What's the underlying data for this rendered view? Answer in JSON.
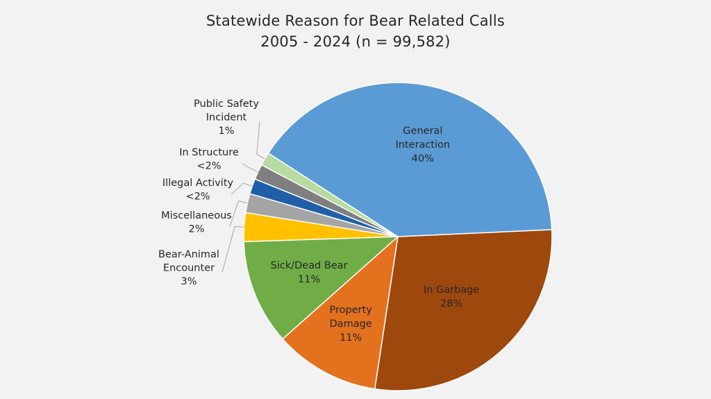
{
  "chart_data": {
    "type": "pie",
    "title": "Statewide Reason for Bear Related Calls",
    "subtitle": "2005 - 2024 (n = 99,582)",
    "slices": [
      {
        "label": "General Interaction",
        "value": 40,
        "value_label": "40%",
        "color": "#5b9bd5"
      },
      {
        "label": "In Garbage",
        "value": 28,
        "value_label": "28%",
        "color": "#9e480e"
      },
      {
        "label": "Property Damage",
        "value": 11,
        "value_label": "11%",
        "color": "#e3711e"
      },
      {
        "label": "Sick/Dead Bear",
        "value": 11,
        "value_label": "11%",
        "color": "#70ad47"
      },
      {
        "label": "Bear-Animal Encounter",
        "value": 3,
        "value_label": "3%",
        "color": "#ffc000"
      },
      {
        "label": "Miscellaneous",
        "value": 2,
        "value_label": "2%",
        "color": "#a5a5a5"
      },
      {
        "label": "Illegal Activity",
        "value": 1.6,
        "value_label": "<2%",
        "color": "#1f5fa8"
      },
      {
        "label": "In Structure",
        "value": 1.6,
        "value_label": "<2%",
        "color": "#7f7f7f"
      },
      {
        "label": "Public Safety Incident",
        "value": 1.4,
        "value_label": "1%",
        "color": "#b7dba0"
      }
    ],
    "start": "right, counter-clockwise from first slice to 'In Garbage' going clockwise",
    "legend": "none"
  }
}
